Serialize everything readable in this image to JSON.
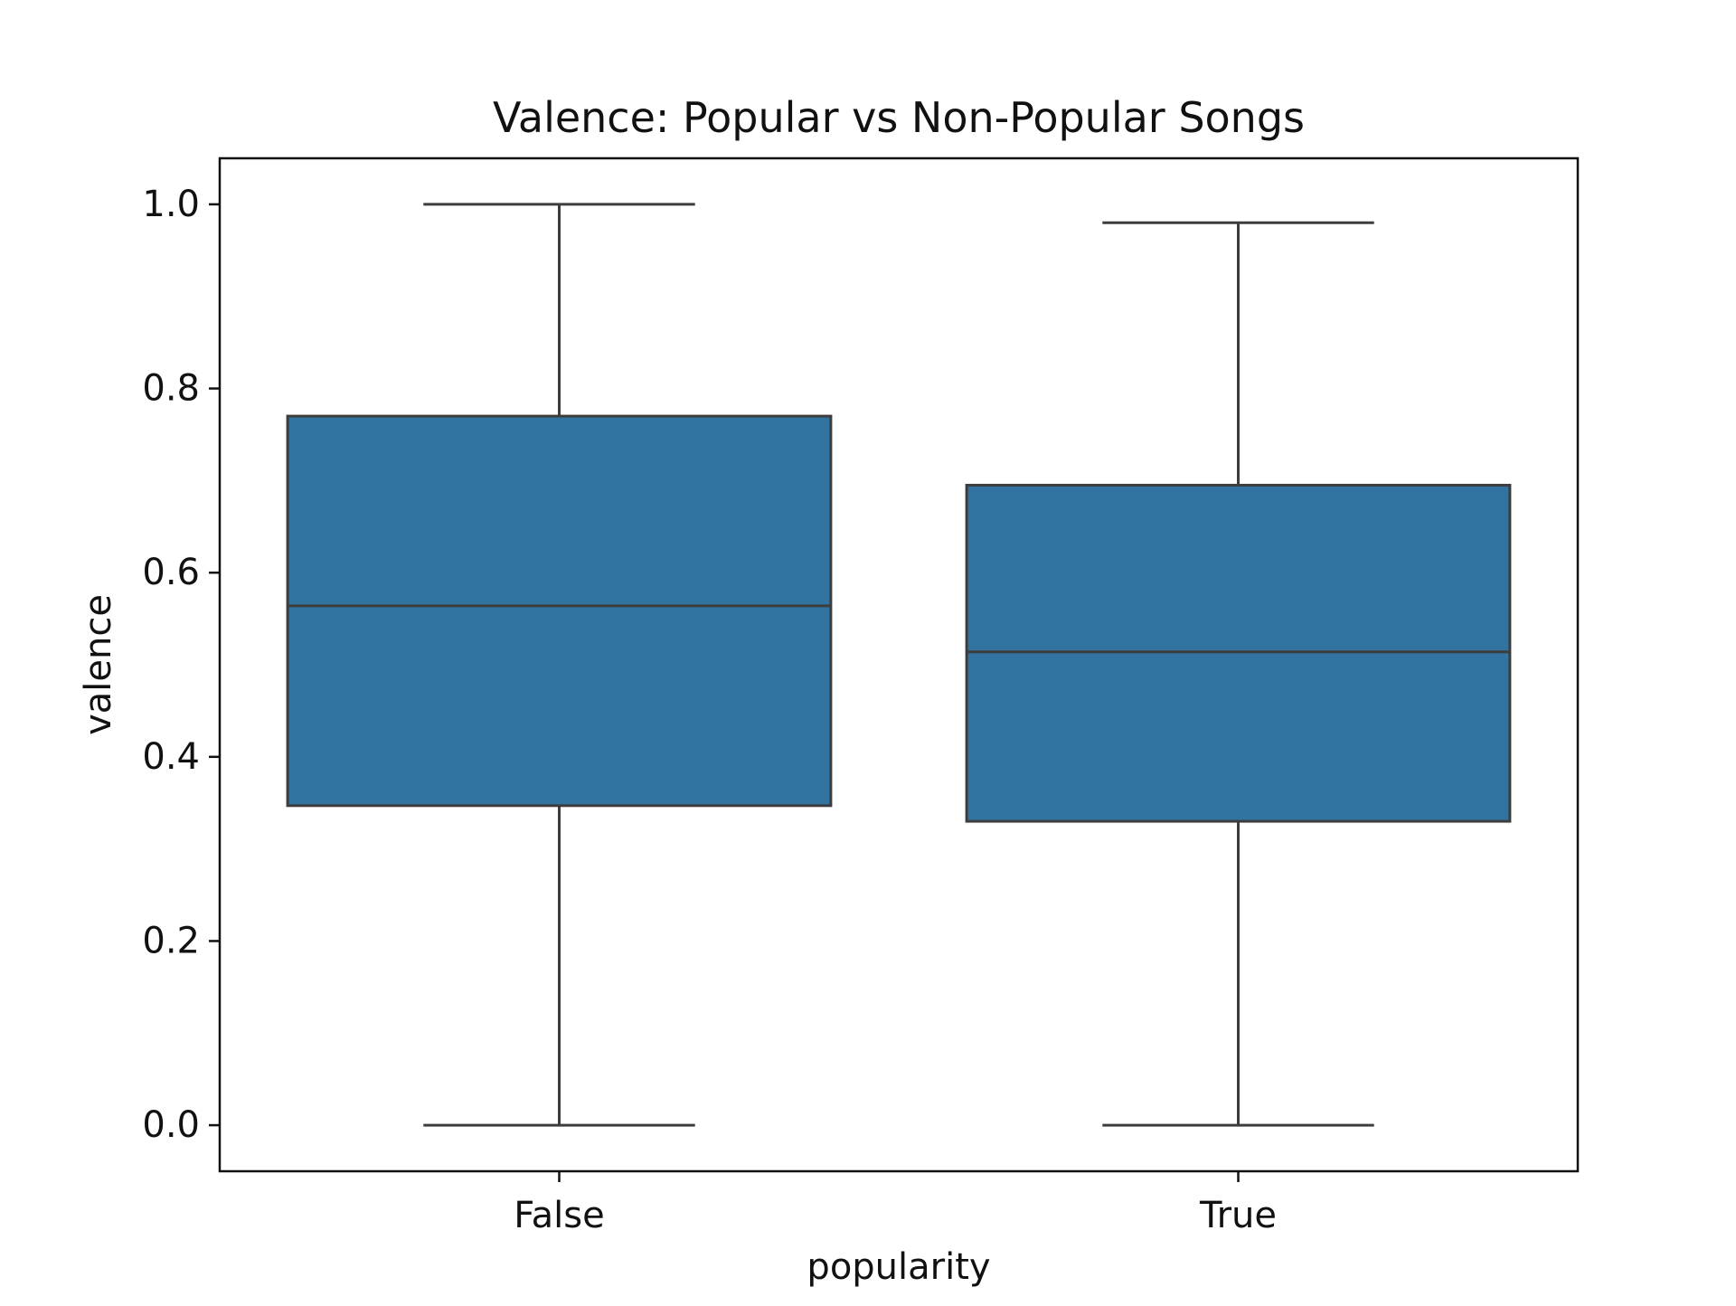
{
  "chart_data": {
    "type": "box",
    "title": "Valence: Popular vs Non-Popular Songs",
    "xlabel": "popularity",
    "ylabel": "valence",
    "categories": [
      "False",
      "True"
    ],
    "ylim": [
      -0.05,
      1.05
    ],
    "yticks": [
      0.0,
      0.2,
      0.4,
      0.6,
      0.8,
      1.0
    ],
    "ytick_labels": [
      "0.0",
      "0.2",
      "0.4",
      "0.6",
      "0.8",
      "1.0"
    ],
    "boxes": [
      {
        "category": "False",
        "whisker_low": 0.0,
        "q1": 0.347,
        "median": 0.564,
        "q3": 0.77,
        "whisker_high": 1.0
      },
      {
        "category": "True",
        "whisker_low": 0.0,
        "q1": 0.33,
        "median": 0.514,
        "q3": 0.695,
        "whisker_high": 0.98
      }
    ],
    "grid": false,
    "colors": {
      "box_fill": "#3274a1",
      "box_edge": "#3d3d3d",
      "axes": "#111111"
    }
  }
}
